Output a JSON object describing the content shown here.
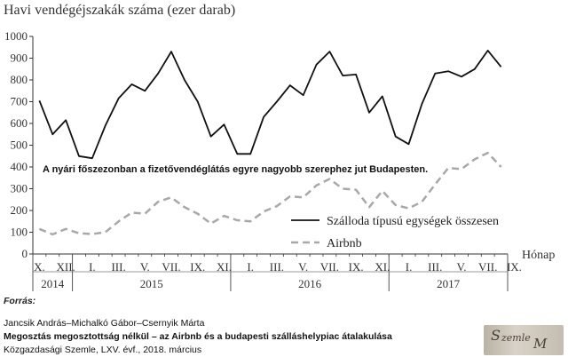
{
  "title": "Havi vendégéjszakák száma (ezer darab)",
  "annotation": "A nyári főszezonban a fizetővendéglátás egyre nagyobb szerephez jut Budapesten.",
  "source": {
    "label": "Forrás:",
    "authors": "Jancsik András–Michalkó Gábor–Csernyik Márta",
    "article": "Megosztás megosztottság nélkül – az Airbnb és a budapesti szálláshelypiac átalakulása",
    "journal": "Közgazdasági Szemle, LXV. évf., 2018. március"
  },
  "chart_data": {
    "type": "line",
    "title": "Havi vendégéjszakák száma (ezer darab)",
    "xlabel": "Hónap",
    "ylabel": "",
    "ylim": [
      0,
      1000
    ],
    "yticks": [
      0,
      100,
      200,
      300,
      400,
      500,
      600,
      700,
      800,
      900,
      1000
    ],
    "grid": false,
    "legend_placement": "lower-right",
    "x_tick_labels": [
      "X.",
      "XII.",
      "I.",
      "III.",
      "V.",
      "VII.",
      "IX.",
      "XI.",
      "I.",
      "III.",
      "V.",
      "VII.",
      "IX.",
      "XI.",
      "I.",
      "III.",
      "V.",
      "VII.",
      "IX."
    ],
    "years": [
      {
        "label": "2014",
        "months": 3
      },
      {
        "label": "2015",
        "months": 12
      },
      {
        "label": "2016",
        "months": 12
      },
      {
        "label": "2017",
        "months": 9
      }
    ],
    "x": [
      "2014-10",
      "2014-11",
      "2014-12",
      "2015-01",
      "2015-02",
      "2015-03",
      "2015-04",
      "2015-05",
      "2015-06",
      "2015-07",
      "2015-08",
      "2015-09",
      "2015-10",
      "2015-11",
      "2015-12",
      "2016-01",
      "2016-02",
      "2016-03",
      "2016-04",
      "2016-05",
      "2016-06",
      "2016-07",
      "2016-08",
      "2016-09",
      "2016-10",
      "2016-11",
      "2016-12",
      "2017-01",
      "2017-02",
      "2017-03",
      "2017-04",
      "2017-05",
      "2017-06",
      "2017-07",
      "2017-08",
      "2017-09"
    ],
    "series": [
      {
        "name": "Szálloda típusú egységek összesen",
        "color": "#111111",
        "style": "solid",
        "values": [
          705,
          550,
          615,
          450,
          440,
          590,
          715,
          780,
          750,
          830,
          930,
          800,
          700,
          540,
          595,
          460,
          460,
          630,
          700,
          775,
          730,
          870,
          930,
          820,
          825,
          650,
          725,
          540,
          505,
          690,
          830,
          840,
          815,
          850,
          935,
          860
        ]
      },
      {
        "name": "Airbnb",
        "color": "#a8a8a8",
        "style": "dashed",
        "values": [
          115,
          90,
          115,
          95,
          92,
          100,
          150,
          190,
          185,
          240,
          260,
          215,
          185,
          140,
          175,
          155,
          150,
          195,
          220,
          265,
          260,
          315,
          345,
          300,
          295,
          215,
          290,
          225,
          210,
          240,
          320,
          395,
          390,
          435,
          465,
          400
        ]
      }
    ]
  }
}
